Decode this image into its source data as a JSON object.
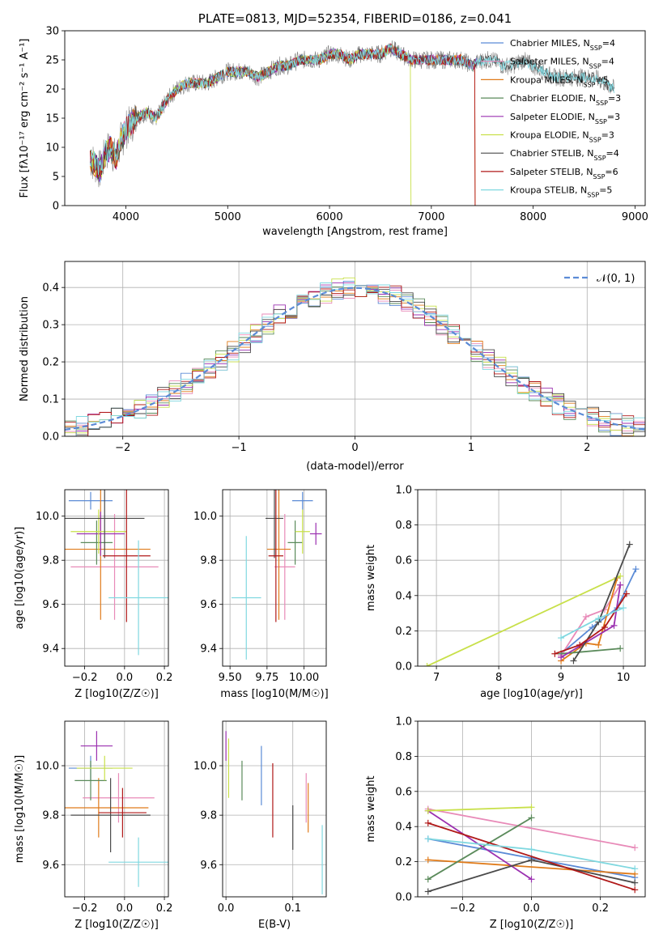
{
  "colors": {
    "Chabrier MILES": "#5b8bd6",
    "Salpeter MILES": "#e88ab8",
    "Kroupa MILES": "#e07b1a",
    "Chabrier ELODIE": "#5a8a5a",
    "Salpeter ELODIE": "#9b30b0",
    "Kroupa ELODIE": "#c8e04a",
    "Chabrier STELIB": "#4a4a4a",
    "Salpeter STELIB": "#b01818",
    "Kroupa STELIB": "#80d8e0"
  },
  "chart_data": [
    {
      "id": "spectrum",
      "type": "line",
      "title": "PLATE=0813, MJD=52354, FIBERID=0186, z=0.041",
      "xlabel": "wavelength [Angstrom, rest frame]",
      "ylabel": "Flux [fλ10⁻¹⁷ erg cm⁻² s⁻¹ A⁻¹]",
      "xlim": [
        3400,
        9100
      ],
      "ylim": [
        0,
        30
      ],
      "xticks": [
        "4000",
        "5000",
        "6000",
        "7000",
        "8000",
        "9000"
      ],
      "yticks": [
        "0",
        "5",
        "10",
        "15",
        "20",
        "25",
        "30"
      ],
      "legend_position": "top-right",
      "legend": [
        "Chabrier MILES, N_SSP=4",
        "Salpeter MILES, N_SSP=4",
        "Kroupa MILES, N_SSP=5",
        "Chabrier ELODIE, N_SSP=3",
        "Salpeter ELODIE, N_SSP=3",
        "Kroupa ELODIE, N_SSP=3",
        "Chabrier STELIB, N_SSP=4",
        "Salpeter STELIB, N_SSP=6",
        "Kroupa STELIB, N_SSP=5"
      ],
      "data_series": {
        "name": "data",
        "color": "#7f7f7f",
        "x": [
          3650,
          3700,
          3750,
          3800,
          3850,
          3900,
          3950,
          4000,
          4100,
          4200,
          4300,
          4400,
          4500,
          4600,
          4700,
          4800,
          4900,
          5000,
          5100,
          5200,
          5300,
          5400,
          5500,
          5600,
          5700,
          5800,
          5900,
          6000,
          6100,
          6200,
          6300,
          6400,
          6500,
          6600,
          6700,
          6800,
          6900,
          7000,
          7100,
          7200,
          7300,
          7400,
          7500,
          7600,
          7700,
          7800,
          7900,
          8000,
          8100,
          8200,
          8300,
          8400,
          8500,
          8600,
          8700,
          8800
        ],
        "y": [
          8,
          7,
          6,
          9,
          10,
          8,
          11,
          13,
          15,
          16,
          15,
          18,
          20,
          21,
          21,
          21,
          22,
          23,
          23,
          23,
          22,
          23,
          24,
          24,
          25,
          25,
          25,
          26,
          26,
          25,
          26,
          26,
          26,
          27,
          26,
          25,
          25,
          25,
          25,
          25,
          25,
          24,
          25,
          25,
          24,
          24,
          25,
          24,
          23,
          22,
          22,
          22,
          22,
          22,
          21,
          20
        ]
      },
      "model_drops": [
        {
          "series": "Kroupa ELODIE",
          "wavelength": 6800
        },
        {
          "series": "Kroupa MILES",
          "wavelength": 7430
        },
        {
          "series": "Salpeter STELIB",
          "wavelength": 7430
        }
      ]
    },
    {
      "id": "residuals",
      "type": "line",
      "xlabel": "(data-model)/error",
      "ylabel": "Normed distribution",
      "xlim": [
        -2.5,
        2.5
      ],
      "ylim": [
        0,
        0.47
      ],
      "xticks": [
        "−2",
        "−1",
        "0",
        "1",
        "2"
      ],
      "yticks": [
        "0.0",
        "0.1",
        "0.2",
        "0.3",
        "0.4"
      ],
      "legend_position": "top-right",
      "legend": [
        "𝒩(0, 1)"
      ],
      "grid": true
    },
    {
      "id": "age-vs-Z",
      "type": "scatter",
      "xlabel": "Z [log10(Z/Z☉)]",
      "ylabel": "age  [log10(age/yr)]",
      "xlim": [
        -0.3,
        0.22
      ],
      "ylim": [
        9.32,
        10.12
      ],
      "xticks": [
        "−0.2",
        "0.0",
        "0.2"
      ],
      "yticks": [
        "9.4",
        "9.6",
        "9.8",
        "10.0"
      ],
      "grid": true,
      "points": [
        {
          "series": "Chabrier MILES",
          "x": -0.17,
          "y": 10.07,
          "xerr": 0.11,
          "yerr": 0.04
        },
        {
          "series": "Salpeter MILES",
          "x": -0.05,
          "y": 9.77,
          "xerr": 0.22,
          "yerr": 0.24
        },
        {
          "series": "Kroupa MILES",
          "x": -0.12,
          "y": 9.85,
          "xerr": 0.25,
          "yerr": 0.32
        },
        {
          "series": "Chabrier ELODIE",
          "x": -0.14,
          "y": 9.88,
          "xerr": 0.08,
          "yerr": 0.1
        },
        {
          "series": "Salpeter ELODIE",
          "x": -0.12,
          "y": 9.92,
          "xerr": 0.12,
          "yerr": 0.1
        },
        {
          "series": "Kroupa ELODIE",
          "x": -0.13,
          "y": 9.93,
          "xerr": 0.14,
          "yerr": 0.1
        },
        {
          "series": "Chabrier STELIB",
          "x": -0.1,
          "y": 9.99,
          "xerr": 0.2,
          "yerr": 0.18
        },
        {
          "series": "Salpeter STELIB",
          "x": 0.01,
          "y": 9.82,
          "xerr": 0.12,
          "yerr": 0.3
        },
        {
          "series": "Kroupa STELIB",
          "x": 0.07,
          "y": 9.63,
          "xerr": 0.15,
          "yerr": 0.26
        }
      ]
    },
    {
      "id": "age-vs-mass",
      "type": "scatter",
      "xlabel": "mass [log10(M/M☉)]",
      "xlim": [
        9.45,
        10.15
      ],
      "ylim": [
        9.32,
        10.12
      ],
      "xticks": [
        "9.50",
        "9.75",
        "10.00"
      ],
      "yticks": [
        "9.4",
        "9.6",
        "9.8",
        "10.0"
      ],
      "grid": true,
      "points": [
        {
          "series": "Chabrier MILES",
          "x": 9.99,
          "y": 10.07,
          "xerr": 0.07,
          "yerr": 0.04
        },
        {
          "series": "Salpeter MILES",
          "x": 9.87,
          "y": 9.77,
          "xerr": 0.07,
          "yerr": 0.24
        },
        {
          "series": "Kroupa MILES",
          "x": 9.83,
          "y": 9.85,
          "xerr": 0.08,
          "yerr": 0.32
        },
        {
          "series": "Chabrier ELODIE",
          "x": 9.94,
          "y": 9.88,
          "xerr": 0.05,
          "yerr": 0.1
        },
        {
          "series": "Salpeter ELODIE",
          "x": 10.08,
          "y": 9.92,
          "xerr": 0.04,
          "yerr": 0.05
        },
        {
          "series": "Kroupa ELODIE",
          "x": 9.99,
          "y": 9.93,
          "xerr": 0.05,
          "yerr": 0.1
        },
        {
          "series": "Chabrier STELIB",
          "x": 9.8,
          "y": 9.99,
          "xerr": 0.06,
          "yerr": 0.18
        },
        {
          "series": "Salpeter STELIB",
          "x": 9.81,
          "y": 9.82,
          "xerr": 0.05,
          "yerr": 0.3
        },
        {
          "series": "Kroupa STELIB",
          "x": 9.61,
          "y": 9.63,
          "xerr": 0.1,
          "yerr": 0.28
        }
      ]
    },
    {
      "id": "weight-vs-age",
      "type": "line",
      "xlabel": "age  [log10(age/yr)]",
      "ylabel": "mass weight",
      "xlim": [
        6.7,
        10.35
      ],
      "ylim": [
        0,
        1
      ],
      "xticks": [
        "7",
        "8",
        "9",
        "10"
      ],
      "yticks": [
        "0.0",
        "0.2",
        "0.4",
        "0.6",
        "0.8",
        "1.0"
      ],
      "grid": true,
      "series": [
        {
          "name": "Chabrier MILES",
          "x": [
            9.0,
            9.5,
            9.9,
            10.2
          ],
          "y": [
            0.07,
            0.22,
            0.33,
            0.55
          ]
        },
        {
          "name": "Salpeter MILES",
          "x": [
            9.0,
            9.4,
            9.7,
            9.95
          ],
          "y": [
            0.06,
            0.28,
            0.32,
            0.46
          ]
        },
        {
          "name": "Kroupa MILES",
          "x": [
            9.0,
            9.4,
            9.6,
            9.9
          ],
          "y": [
            0.03,
            0.13,
            0.12,
            0.5
          ]
        },
        {
          "name": "Chabrier ELODIE",
          "x": [
            9.0,
            9.95
          ],
          "y": [
            0.07,
            0.1
          ]
        },
        {
          "name": "Salpeter ELODIE",
          "x": [
            9.0,
            9.85,
            9.95
          ],
          "y": [
            0.05,
            0.23,
            0.46
          ]
        },
        {
          "name": "Kroupa ELODIE",
          "x": [
            6.85,
            9.95
          ],
          "y": [
            0.0,
            0.51
          ]
        },
        {
          "name": "Chabrier STELIB",
          "x": [
            9.2,
            9.6,
            10.1
          ],
          "y": [
            0.03,
            0.25,
            0.69
          ]
        },
        {
          "name": "Salpeter STELIB",
          "x": [
            8.9,
            9.3,
            9.7,
            10.05
          ],
          "y": [
            0.07,
            0.12,
            0.22,
            0.41
          ]
        },
        {
          "name": "Kroupa STELIB",
          "x": [
            9.0,
            9.6,
            10.0
          ],
          "y": [
            0.16,
            0.27,
            0.33
          ]
        }
      ]
    },
    {
      "id": "mass-vs-Z",
      "type": "scatter",
      "xlabel": "Z [log10(Z/Z☉)]",
      "ylabel": "mass [log10(M/M☉)]",
      "xlim": [
        -0.3,
        0.22
      ],
      "ylim": [
        9.47,
        10.18
      ],
      "xticks": [
        "−0.2",
        "0.0",
        "0.2"
      ],
      "yticks": [
        "9.6",
        "9.8",
        "10.0"
      ],
      "grid": true,
      "points": [
        {
          "series": "Chabrier MILES",
          "x": -0.17,
          "y": 9.99,
          "xerr": 0.11,
          "yerr": 0.05
        },
        {
          "series": "Salpeter MILES",
          "x": -0.03,
          "y": 9.87,
          "xerr": 0.18,
          "yerr": 0.1
        },
        {
          "series": "Kroupa MILES",
          "x": -0.13,
          "y": 9.83,
          "xerr": 0.25,
          "yerr": 0.12
        },
        {
          "series": "Chabrier ELODIE",
          "x": -0.17,
          "y": 9.94,
          "xerr": 0.08,
          "yerr": 0.08
        },
        {
          "series": "Salpeter ELODIE",
          "x": -0.14,
          "y": 10.08,
          "xerr": 0.08,
          "yerr": 0.06
        },
        {
          "series": "Kroupa ELODIE",
          "x": -0.1,
          "y": 9.99,
          "xerr": 0.14,
          "yerr": 0.05
        },
        {
          "series": "Chabrier STELIB",
          "x": -0.07,
          "y": 9.8,
          "xerr": 0.2,
          "yerr": 0.15
        },
        {
          "series": "Salpeter STELIB",
          "x": -0.01,
          "y": 9.81,
          "xerr": 0.12,
          "yerr": 0.1
        },
        {
          "series": "Kroupa STELIB",
          "x": 0.07,
          "y": 9.61,
          "xerr": 0.15,
          "yerr": 0.1
        }
      ]
    },
    {
      "id": "mass-vs-EBV",
      "type": "scatter",
      "xlabel": "E(B-V)",
      "xlim": [
        -0.005,
        0.15
      ],
      "ylim": [
        9.47,
        10.18
      ],
      "xticks": [
        "0.0",
        "0.1"
      ],
      "yticks": [
        "9.6",
        "9.8",
        "10.0"
      ],
      "grid": true,
      "points": [
        {
          "series": "Chabrier MILES",
          "x": 0.053,
          "y": 9.96,
          "xerr": 0,
          "yerr": 0.12
        },
        {
          "series": "Salpeter MILES",
          "x": 0.12,
          "y": 9.87,
          "xerr": 0,
          "yerr": 0.1
        },
        {
          "series": "Kroupa MILES",
          "x": 0.123,
          "y": 9.83,
          "xerr": 0,
          "yerr": 0.1
        },
        {
          "series": "Chabrier ELODIE",
          "x": 0.024,
          "y": 9.94,
          "xerr": 0,
          "yerr": 0.08
        },
        {
          "series": "Salpeter ELODIE",
          "x": 0.0,
          "y": 10.08,
          "xerr": 0,
          "yerr": 0.06
        },
        {
          "series": "Kroupa ELODIE",
          "x": 0.004,
          "y": 9.99,
          "xerr": 0,
          "yerr": 0.12
        },
        {
          "series": "Chabrier STELIB",
          "x": 0.1,
          "y": 9.75,
          "xerr": 0,
          "yerr": 0.09
        },
        {
          "series": "Salpeter STELIB",
          "x": 0.07,
          "y": 9.86,
          "xerr": 0,
          "yerr": 0.15
        },
        {
          "series": "Kroupa STELIB",
          "x": 0.144,
          "y": 9.62,
          "xerr": 0,
          "yerr": 0.14
        }
      ]
    },
    {
      "id": "weight-vs-Z",
      "type": "line",
      "xlabel": "Z [log10(Z/Z☉)]",
      "ylabel": "mass weight",
      "xlim": [
        -0.33,
        0.33
      ],
      "ylim": [
        0,
        1
      ],
      "xticks": [
        "−0.2",
        "0.0",
        "0.2"
      ],
      "yticks": [
        "0.0",
        "0.2",
        "0.4",
        "0.6",
        "0.8",
        "1.0"
      ],
      "grid": true,
      "series": [
        {
          "name": "Chabrier MILES",
          "x": [
            -0.3,
            0.0,
            0.3
          ],
          "y": [
            0.33,
            0.22,
            0.11
          ]
        },
        {
          "name": "Salpeter MILES",
          "x": [
            -0.3,
            0.3
          ],
          "y": [
            0.5,
            0.28
          ]
        },
        {
          "name": "Kroupa MILES",
          "x": [
            -0.3,
            0.3
          ],
          "y": [
            0.21,
            0.13
          ]
        },
        {
          "name": "Chabrier ELODIE",
          "x": [
            -0.3,
            0.0
          ],
          "y": [
            0.1,
            0.45
          ]
        },
        {
          "name": "Salpeter ELODIE",
          "x": [
            -0.3,
            0.0
          ],
          "y": [
            0.49,
            0.1
          ]
        },
        {
          "name": "Kroupa ELODIE",
          "x": [
            -0.3,
            0.0
          ],
          "y": [
            0.49,
            0.51
          ]
        },
        {
          "name": "Chabrier STELIB",
          "x": [
            -0.3,
            0.0,
            0.3
          ],
          "y": [
            0.03,
            0.21,
            0.08
          ]
        },
        {
          "name": "Salpeter STELIB",
          "x": [
            -0.3,
            0.3
          ],
          "y": [
            0.42,
            0.04
          ]
        },
        {
          "name": "Kroupa STELIB",
          "x": [
            -0.3,
            0.0,
            0.3
          ],
          "y": [
            0.33,
            0.27,
            0.16
          ]
        }
      ]
    }
  ]
}
